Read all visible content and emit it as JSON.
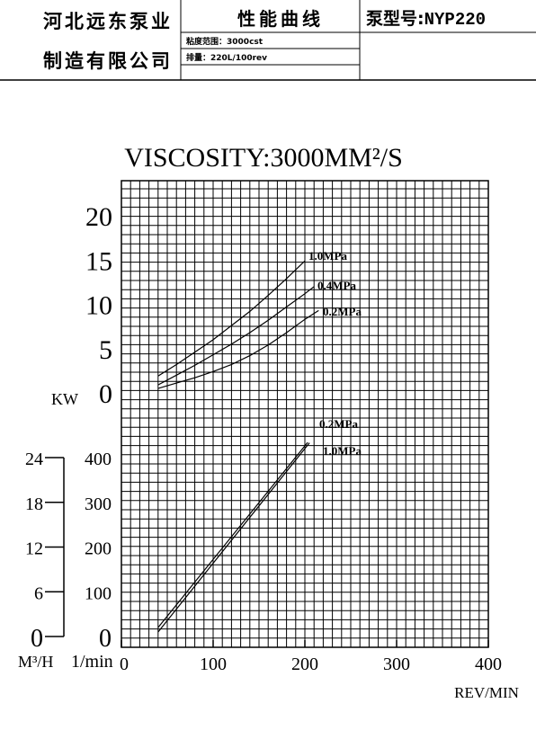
{
  "header": {
    "company_line1": "河北远东泵业",
    "company_line2": "制造有限公司",
    "chart_title": "性能曲线",
    "viscosity_label": "粘度范围：",
    "viscosity_value": "3000cst",
    "displacement_label": "排量：",
    "displacement_value": "220L/100rev",
    "model_label": "泵型号:",
    "model_value": "NYP220"
  },
  "chart_data": {
    "type": "line",
    "title": "VISCOSITY:3000MM²/S",
    "xlabel": "REV/MIN",
    "x_ticks": [
      "0",
      "100",
      "200",
      "300",
      "400"
    ],
    "xlim": [
      0,
      400
    ],
    "grid": true,
    "power_panel": {
      "ylabel": "KW",
      "ylim": [
        0,
        20
      ],
      "y_ticks": [
        "0",
        "5",
        "10",
        "15",
        "20"
      ],
      "series": [
        {
          "name": "1.0MPa",
          "x": [
            40,
            60,
            80,
            100,
            120,
            140,
            160,
            180,
            200
          ],
          "y": [
            1.8,
            3.1,
            4.5,
            5.9,
            7.5,
            9.1,
            10.9,
            12.8,
            14.8
          ]
        },
        {
          "name": "0.4MPa",
          "x": [
            40,
            60,
            80,
            100,
            120,
            140,
            160,
            180,
            200,
            210
          ],
          "y": [
            0.8,
            1.9,
            3.0,
            4.2,
            5.4,
            6.7,
            8.1,
            9.6,
            11.1,
            11.9
          ]
        },
        {
          "name": "0.2MPa",
          "x": [
            40,
            60,
            80,
            100,
            120,
            140,
            160,
            180,
            200,
            215
          ],
          "y": [
            0.4,
            1.0,
            1.6,
            2.3,
            3.1,
            4.1,
            5.3,
            6.7,
            8.2,
            9.2
          ]
        }
      ]
    },
    "flow_panel": {
      "ylabel_left": "M³/H",
      "ylabel_right": "1/min",
      "ylim_lpm": [
        0,
        400
      ],
      "ylim_m3h": [
        0,
        24
      ],
      "y_ticks_lpm": [
        "0",
        "100",
        "200",
        "300",
        "400"
      ],
      "y_ticks_m3h": [
        "0",
        "6",
        "12",
        "18",
        "24"
      ],
      "series": [
        {
          "name": "0.2MPa",
          "x": [
            40,
            203
          ],
          "y": [
            20,
            434
          ]
        },
        {
          "name": "1.0MPa",
          "x": [
            40,
            205
          ],
          "y": [
            10,
            433
          ]
        }
      ]
    }
  }
}
